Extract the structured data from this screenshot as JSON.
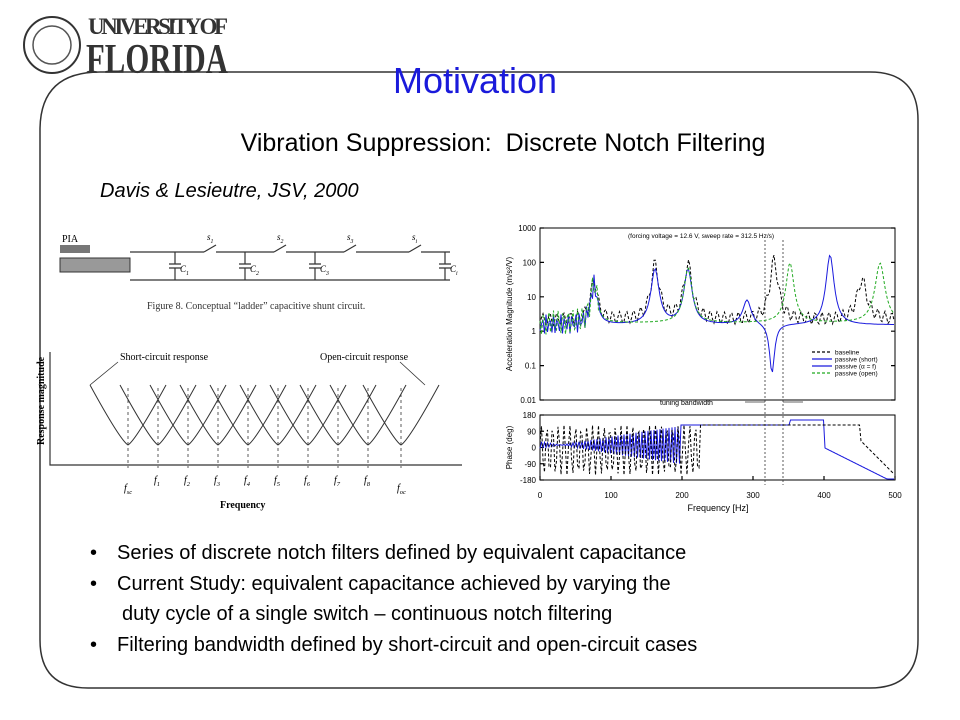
{
  "logo": {
    "line1": "UNIVERSITY OF",
    "line2": "FLORIDA"
  },
  "title": "Motivation",
  "subtitle": "Vibration Suppression:  Discrete Notch Filtering",
  "citation": "Davis & Lesieutre, JSV, 2000",
  "circuit": {
    "source": "PIA",
    "switches": [
      [
        "s",
        "1"
      ],
      [
        "s",
        "2"
      ],
      [
        "s",
        "3"
      ],
      [
        "s",
        "i"
      ]
    ],
    "capacitors": [
      [
        "C",
        "1"
      ],
      [
        "C",
        "2"
      ],
      [
        "C",
        "3"
      ],
      [
        "C",
        "i"
      ]
    ],
    "caption": "Figure 8.  Conceptual “ladder” capacitive shunt circuit."
  },
  "response": {
    "short_label": "Short-circuit response",
    "open_label": "Open-circuit response",
    "y_label": "Response magnitude",
    "x_label": "Frequency",
    "freqs": [
      [
        "f",
        "sc"
      ],
      [
        "f",
        "1"
      ],
      [
        "f",
        "2"
      ],
      [
        "f",
        "3"
      ],
      [
        "f",
        "4"
      ],
      [
        "f",
        "5"
      ],
      [
        "f",
        "6"
      ],
      [
        "f",
        "7"
      ],
      [
        "f",
        "8"
      ],
      [
        "f",
        "oc"
      ]
    ]
  },
  "plot": {
    "annotation": "(forcing voltage = 12.6 V, sweep rate = 312.5 Hz/s)",
    "y_label_top": "Acceleration Magnitude (m/s²/V)",
    "y_ticks_top": [
      "1000",
      "100",
      "10",
      "1",
      "0.1",
      "0.01"
    ],
    "y_label_bottom": "Phase (deg)",
    "y_ticks_bottom": [
      "180",
      "90",
      "0",
      "-90",
      "-180"
    ],
    "x_ticks": [
      "0",
      "100",
      "200",
      "300",
      "400",
      "500"
    ],
    "x_label": "Frequency [Hz]",
    "legend": [
      "baseline",
      "passive (short)",
      "passive (α = f)",
      "passive (open)"
    ],
    "tuning": "tuning bandwidth"
  },
  "bullets": [
    [
      "Series of discrete notch filters defined by equivalent capacitance"
    ],
    [
      "Current Study:  equivalent capacitance achieved by varying the",
      "duty cycle of a single switch – continuous notch filtering"
    ],
    [
      "Filtering bandwidth defined by short-circuit and open-circuit cases"
    ]
  ]
}
